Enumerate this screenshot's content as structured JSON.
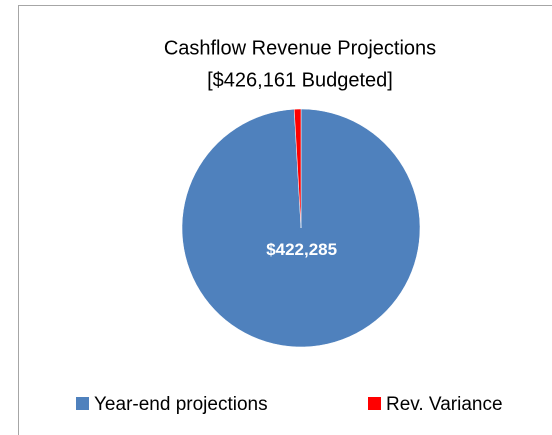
{
  "chart_data": {
    "type": "pie",
    "title": "Cashflow Revenue Projections",
    "subtitle": "[$426,161 Budgeted]",
    "categories": [
      "Year-end projections",
      "Rev. Variance"
    ],
    "values": [
      422285,
      3876
    ],
    "value_labels": [
      "$422,285",
      null
    ],
    "colors": [
      "#4f81bd",
      "#ff0000"
    ],
    "legend": "bottom"
  }
}
